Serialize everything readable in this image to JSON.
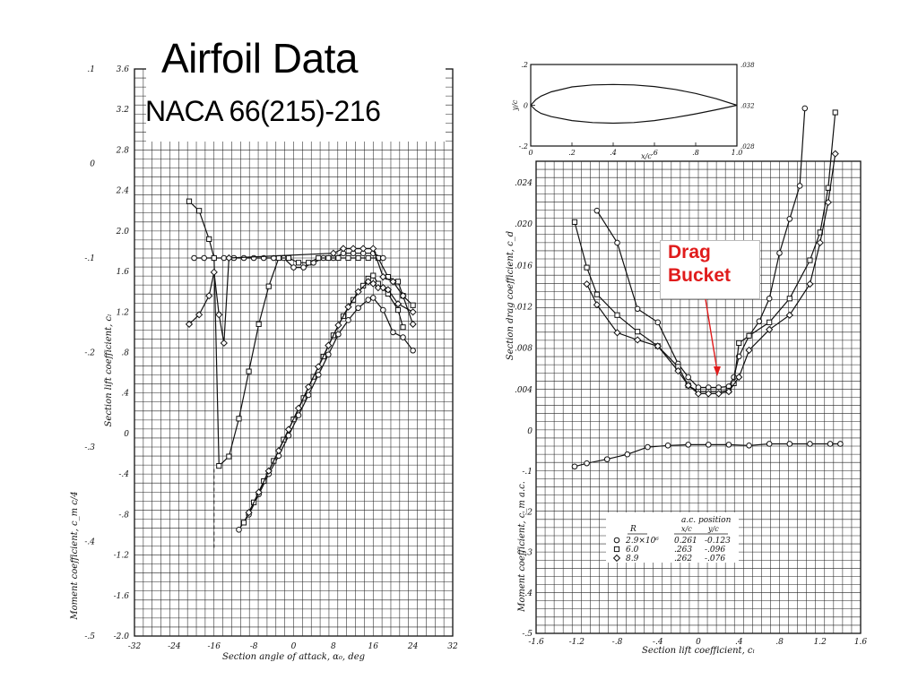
{
  "header": {
    "title": "Airfoil Data",
    "subtitle": "NACA 66(215)-216"
  },
  "annotation": {
    "line1": "Drag",
    "line2": "Bucket",
    "color": "#e01c1c"
  },
  "chart_data": [
    {
      "type": "line",
      "id": "lift-chart",
      "xlabel": "Section angle of attack, α₀, deg",
      "ylabel": "Section lift coefficient, cₗ",
      "y2label": "Moment coefficient, c_m c/4",
      "xlim": [
        -32,
        32
      ],
      "ylim": [
        -2.0,
        3.6
      ],
      "x_ticks": [
        "-32",
        "-24",
        "-16",
        "-8",
        "0",
        "8",
        "16",
        "24",
        "32"
      ],
      "y_ticks": [
        "-2.0",
        "-1.6",
        "-1.2",
        "-.8",
        "-.4",
        "0",
        ".4",
        ".8",
        "1.2",
        "1.6",
        "2.0",
        "2.4",
        "2.8",
        "3.2",
        "3.6"
      ],
      "y2lim": [
        -0.5,
        0.1
      ],
      "y2_ticks": [
        ".1",
        "0",
        "-.1",
        "-.2",
        "-.3",
        "-.4",
        "-.5"
      ],
      "series": [
        {
          "marker": "circle",
          "kind": "lift",
          "x": [
            -11,
            -9,
            -7,
            -5,
            -3,
            -1,
            1,
            3,
            5,
            7,
            9,
            11,
            13,
            15,
            16,
            18,
            20,
            22,
            24
          ],
          "y": [
            -0.95,
            -0.8,
            -0.6,
            -0.4,
            -0.22,
            -0.02,
            0.18,
            0.38,
            0.58,
            0.78,
            0.98,
            1.12,
            1.24,
            1.32,
            1.34,
            1.22,
            1.0,
            0.95,
            0.82
          ]
        },
        {
          "marker": "square",
          "kind": "lift",
          "x": [
            -10,
            -8,
            -6,
            -4,
            -2,
            0,
            2,
            4,
            6,
            8,
            10,
            12,
            14,
            15,
            16,
            17,
            19,
            21,
            22
          ],
          "y": [
            -0.88,
            -0.68,
            -0.47,
            -0.27,
            -0.06,
            0.14,
            0.35,
            0.56,
            0.76,
            0.97,
            1.16,
            1.32,
            1.46,
            1.53,
            1.56,
            1.48,
            1.38,
            1.22,
            1.05
          ]
        },
        {
          "marker": "diamond",
          "kind": "lift",
          "x": [
            -9,
            -7,
            -5,
            -3,
            -1,
            1,
            3,
            5,
            7,
            9,
            11,
            13,
            15,
            16,
            17,
            18,
            19,
            21,
            24
          ],
          "y": [
            -0.78,
            -0.58,
            -0.37,
            -0.17,
            0.04,
            0.25,
            0.46,
            0.66,
            0.87,
            1.07,
            1.25,
            1.4,
            1.5,
            1.48,
            1.44,
            1.44,
            1.42,
            1.28,
            1.2
          ]
        },
        {
          "marker": "circle",
          "kind": "moment",
          "x": [
            -20,
            -18,
            -16,
            -14,
            -12,
            -10,
            -8,
            -6,
            -4,
            -2,
            0,
            2,
            4,
            6,
            8,
            10,
            12,
            14,
            16,
            18
          ],
          "y": [
            -0.1,
            -0.1,
            -0.1,
            -0.1,
            -0.1,
            -0.1,
            -0.1,
            -0.1,
            -0.1,
            -0.1,
            -0.11,
            -0.11,
            -0.105,
            -0.1,
            -0.1,
            -0.095,
            -0.095,
            -0.095,
            -0.095,
            -0.1
          ]
        },
        {
          "marker": "square",
          "kind": "moment",
          "x": [
            -21,
            -19,
            -17,
            -16,
            -15,
            -13,
            -11,
            -9,
            -7,
            -5,
            -3,
            -1,
            1,
            3,
            5,
            7,
            9,
            11,
            13,
            15,
            17,
            19,
            21,
            22,
            24
          ],
          "y": [
            -0.04,
            -0.05,
            -0.08,
            -0.1,
            -0.32,
            -0.31,
            -0.27,
            -0.22,
            -0.17,
            -0.13,
            -0.1,
            -0.1,
            -0.105,
            -0.105,
            -0.1,
            -0.1,
            -0.1,
            -0.1,
            -0.1,
            -0.1,
            -0.1,
            -0.12,
            -0.125,
            -0.14,
            -0.15
          ]
        },
        {
          "marker": "diamond",
          "kind": "moment",
          "x": [
            -21,
            -19,
            -17,
            -16,
            -15,
            -14,
            -13,
            8,
            10,
            12,
            14,
            16,
            18,
            20,
            22,
            24
          ],
          "y": [
            -0.17,
            -0.16,
            -0.14,
            -0.115,
            -0.16,
            -0.19,
            -0.1,
            -0.095,
            -0.09,
            -0.09,
            -0.09,
            -0.09,
            -0.12,
            -0.125,
            -0.14,
            -0.17
          ]
        }
      ]
    },
    {
      "type": "line",
      "id": "drag-chart",
      "xlabel": "Section lift coefficient, cₗ",
      "ylabel": "Section drag coefficient, c_d",
      "y2label": "Moment coefficient, c_m a.c.",
      "xlim": [
        -1.6,
        1.6
      ],
      "ylim": [
        -0.5,
        0.024
      ],
      "x_ticks": [
        "-1.6",
        "-1.2",
        "-.8",
        "-.4",
        "0",
        ".4",
        ".8",
        "1.2",
        "1.6"
      ],
      "y_ticks": [
        ".024",
        ".020",
        ".016",
        ".012",
        ".008",
        ".004",
        "0"
      ],
      "y2_ticks": [
        "-.1",
        "-.2",
        "-.3",
        "-.4",
        "-.5"
      ],
      "series": [
        {
          "marker": "circle",
          "kind": "drag",
          "name": "2.9×10⁶",
          "x": [
            -1.0,
            -0.8,
            -0.6,
            -0.4,
            -0.2,
            -0.1,
            0.0,
            0.1,
            0.2,
            0.3,
            0.35,
            0.4,
            0.5,
            0.6,
            0.7,
            0.8,
            0.9,
            1.0,
            1.05
          ],
          "y": [
            0.0213,
            0.0182,
            0.0118,
            0.0105,
            0.0065,
            0.0052,
            0.0042,
            0.0042,
            0.0042,
            0.0043,
            0.0052,
            0.0072,
            0.0092,
            0.0106,
            0.0128,
            0.0172,
            0.0205,
            0.0237,
            0.0312
          ]
        },
        {
          "marker": "square",
          "kind": "drag",
          "name": "6.0",
          "x": [
            -1.22,
            -1.1,
            -1.0,
            -0.8,
            -0.6,
            -0.4,
            -0.2,
            -0.1,
            0.0,
            0.1,
            0.2,
            0.3,
            0.35,
            0.4,
            0.5,
            0.7,
            0.9,
            1.1,
            1.2,
            1.28,
            1.35
          ],
          "y": [
            0.0202,
            0.0158,
            0.0132,
            0.0112,
            0.0096,
            0.0082,
            0.0062,
            0.0044,
            0.0038,
            0.0038,
            0.0038,
            0.0039,
            0.0046,
            0.0085,
            0.0092,
            0.0105,
            0.0128,
            0.0165,
            0.0192,
            0.0235,
            0.0308
          ]
        },
        {
          "marker": "diamond",
          "kind": "drag",
          "name": "8.9",
          "x": [
            -1.1,
            -1.0,
            -0.8,
            -0.6,
            -0.4,
            -0.2,
            -0.1,
            0.0,
            0.1,
            0.2,
            0.3,
            0.4,
            0.5,
            0.7,
            0.9,
            1.1,
            1.2,
            1.28,
            1.35
          ],
          "y": [
            0.0142,
            0.0122,
            0.0095,
            0.0088,
            0.0082,
            0.0058,
            0.0044,
            0.0036,
            0.0036,
            0.0036,
            0.0038,
            0.0052,
            0.0078,
            0.0098,
            0.0112,
            0.0142,
            0.0182,
            0.0221,
            0.0268
          ]
        },
        {
          "marker": "circle",
          "kind": "moment",
          "x": [
            -1.22,
            -1.1,
            -0.9,
            -0.7,
            -0.5,
            -0.3,
            -0.1,
            0.1,
            0.3,
            0.5,
            0.7,
            0.9,
            1.1,
            1.3,
            1.4
          ],
          "y": [
            -0.088,
            -0.08,
            -0.07,
            -0.058,
            -0.04,
            -0.036,
            -0.034,
            -0.034,
            -0.034,
            -0.036,
            -0.032,
            -0.032,
            -0.032,
            -0.032,
            -0.032
          ]
        }
      ],
      "legend": {
        "header_r": "R",
        "header_ac": "a.c. position",
        "sub_x": "x/c",
        "sub_y": "y/c",
        "rows": [
          {
            "marker": "circle",
            "r": "2.9×10⁶",
            "xc": "0.261",
            "yc": "-0.123"
          },
          {
            "marker": "square",
            "r": "6.0",
            "xc": ".263",
            "yc": "-.096"
          },
          {
            "marker": "diamond",
            "r": "8.9",
            "xc": ".262",
            "yc": "-.076"
          }
        ]
      }
    },
    {
      "type": "line",
      "id": "profile-chart",
      "xlabel": "x/c",
      "ylabel": "y/c",
      "xlim": [
        0,
        1.0
      ],
      "ylim": [
        -0.2,
        0.2
      ],
      "x_ticks": [
        "0",
        ".2",
        ".4",
        ".6",
        ".8",
        "1.0"
      ],
      "y_ticks": [
        ".2",
        "0",
        "-.2"
      ],
      "y2_ticks": [
        ".038",
        ".032",
        ".028"
      ],
      "series": [
        {
          "name": "upper",
          "x": [
            0,
            0.025,
            0.05,
            0.1,
            0.2,
            0.3,
            0.4,
            0.5,
            0.6,
            0.7,
            0.8,
            0.9,
            1.0
          ],
          "y": [
            0,
            0.028,
            0.045,
            0.066,
            0.09,
            0.1,
            0.102,
            0.1,
            0.092,
            0.078,
            0.058,
            0.032,
            0
          ]
        },
        {
          "name": "lower",
          "x": [
            0,
            0.025,
            0.05,
            0.1,
            0.2,
            0.3,
            0.4,
            0.5,
            0.6,
            0.7,
            0.8,
            0.9,
            1.0
          ],
          "y": [
            0,
            -0.025,
            -0.04,
            -0.056,
            -0.075,
            -0.085,
            -0.088,
            -0.085,
            -0.075,
            -0.06,
            -0.042,
            -0.022,
            0
          ]
        }
      ]
    }
  ]
}
